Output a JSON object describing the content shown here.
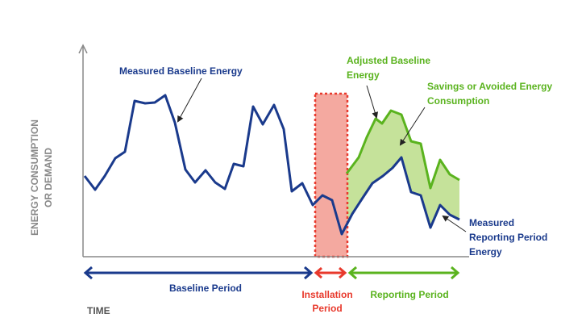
{
  "axes": {
    "y_label": [
      "ENERGY CONSUMPTION",
      "OR DEMAND"
    ],
    "x_label": "TIME"
  },
  "annotations": {
    "measured_baseline": [
      "Measured Baseline Energy"
    ],
    "adjusted_baseline": [
      "Adjusted Baseline",
      "Energy"
    ],
    "savings": [
      "Savings or Avoided Energy",
      "Consumption"
    ],
    "measured_reporting": [
      "Measured",
      "Reporting Period",
      "Energy"
    ]
  },
  "periods": {
    "baseline": [
      "Baseline Period"
    ],
    "installation": [
      "Installation",
      "Period"
    ],
    "reporting": [
      "Reporting Period"
    ]
  }
}
